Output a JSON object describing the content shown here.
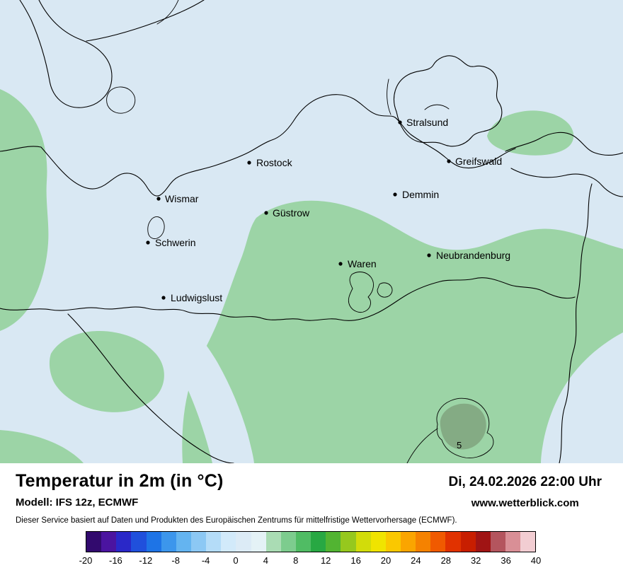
{
  "map": {
    "cities": [
      {
        "name": "Stralsund"
      },
      {
        "name": "Rostock"
      },
      {
        "name": "Greifswald"
      },
      {
        "name": "Wismar"
      },
      {
        "name": "Demmin"
      },
      {
        "name": "Güstrow"
      },
      {
        "name": "Schwerin"
      },
      {
        "name": "Neubrandenburg"
      },
      {
        "name": "Waren"
      },
      {
        "name": "Ludwigslust"
      }
    ],
    "annotations": [
      {
        "label": "5"
      }
    ],
    "colors": {
      "base_cool": "#d9e8f3",
      "mild_green": "#9cd4a6",
      "warm_spot": "#84ab84",
      "line": "#000000"
    }
  },
  "footer": {
    "title": "Temperatur in 2m (in °C)",
    "datetime": "Di, 24.02.2026 22:00 Uhr",
    "model": "Modell: IFS 12z, ECMWF",
    "website": "www.wetterblick.com",
    "disclaimer": "Dieser Service basiert auf Daten und Produkten des Europäischen Zentrums für mittelfristige Wettervorhersage (ECMWF)."
  },
  "legend": {
    "unit": "°C",
    "min": -20,
    "max": 40,
    "ticks": [
      "-20",
      "-16",
      "-12",
      "-8",
      "-4",
      "0",
      "4",
      "8",
      "12",
      "16",
      "20",
      "24",
      "28",
      "32",
      "36",
      "40"
    ],
    "colors": [
      "#320a6e",
      "#4b14a0",
      "#2a28c8",
      "#2050dc",
      "#1e74e6",
      "#3c96ec",
      "#64b4f0",
      "#8cc8f4",
      "#b4dcf8",
      "#d2eafa",
      "#dcebf6",
      "#e4f2f6",
      "#aadcb4",
      "#7dcc8e",
      "#50bc64",
      "#28a843",
      "#52b432",
      "#96c81e",
      "#d2dc0a",
      "#f0e400",
      "#fac800",
      "#faa500",
      "#f58200",
      "#f05a00",
      "#e13200",
      "#c81e00",
      "#a01414",
      "#b4555e",
      "#d98f96",
      "#f2cdd2"
    ]
  }
}
